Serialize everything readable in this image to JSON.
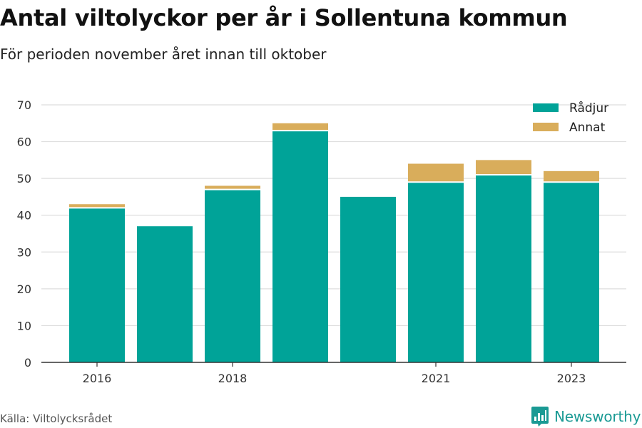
{
  "header": {
    "title": "Antal viltolyckor per år i Sollentuna kommun",
    "subtitle": "För perioden november året innan till oktober"
  },
  "footer": {
    "source": "Källa: Viltolycksrådet",
    "brand": "Newsworthy",
    "brand_icon": "bar-chart-logo-icon",
    "brand_color": "#1a9a94"
  },
  "chart_data": {
    "type": "bar",
    "stacked": true,
    "categories": [
      "2016",
      "2017",
      "2018",
      "2019",
      "2020",
      "2021",
      "2022",
      "2023"
    ],
    "tick_labels": [
      "2016",
      "",
      "2018",
      "",
      "",
      "2021",
      "",
      "2023"
    ],
    "series": [
      {
        "name": "Rådjur",
        "color": "#00a398",
        "values": [
          42,
          37,
          47,
          63,
          45,
          49,
          51,
          49
        ]
      },
      {
        "name": "Annat",
        "color": "#d9ad5b",
        "values": [
          1,
          0,
          1,
          2,
          0,
          5,
          4,
          3
        ]
      }
    ],
    "ylim": [
      0,
      70
    ],
    "yticks": [
      0,
      10,
      20,
      30,
      40,
      50,
      60,
      70
    ],
    "grid": true,
    "legend": "top-right"
  }
}
